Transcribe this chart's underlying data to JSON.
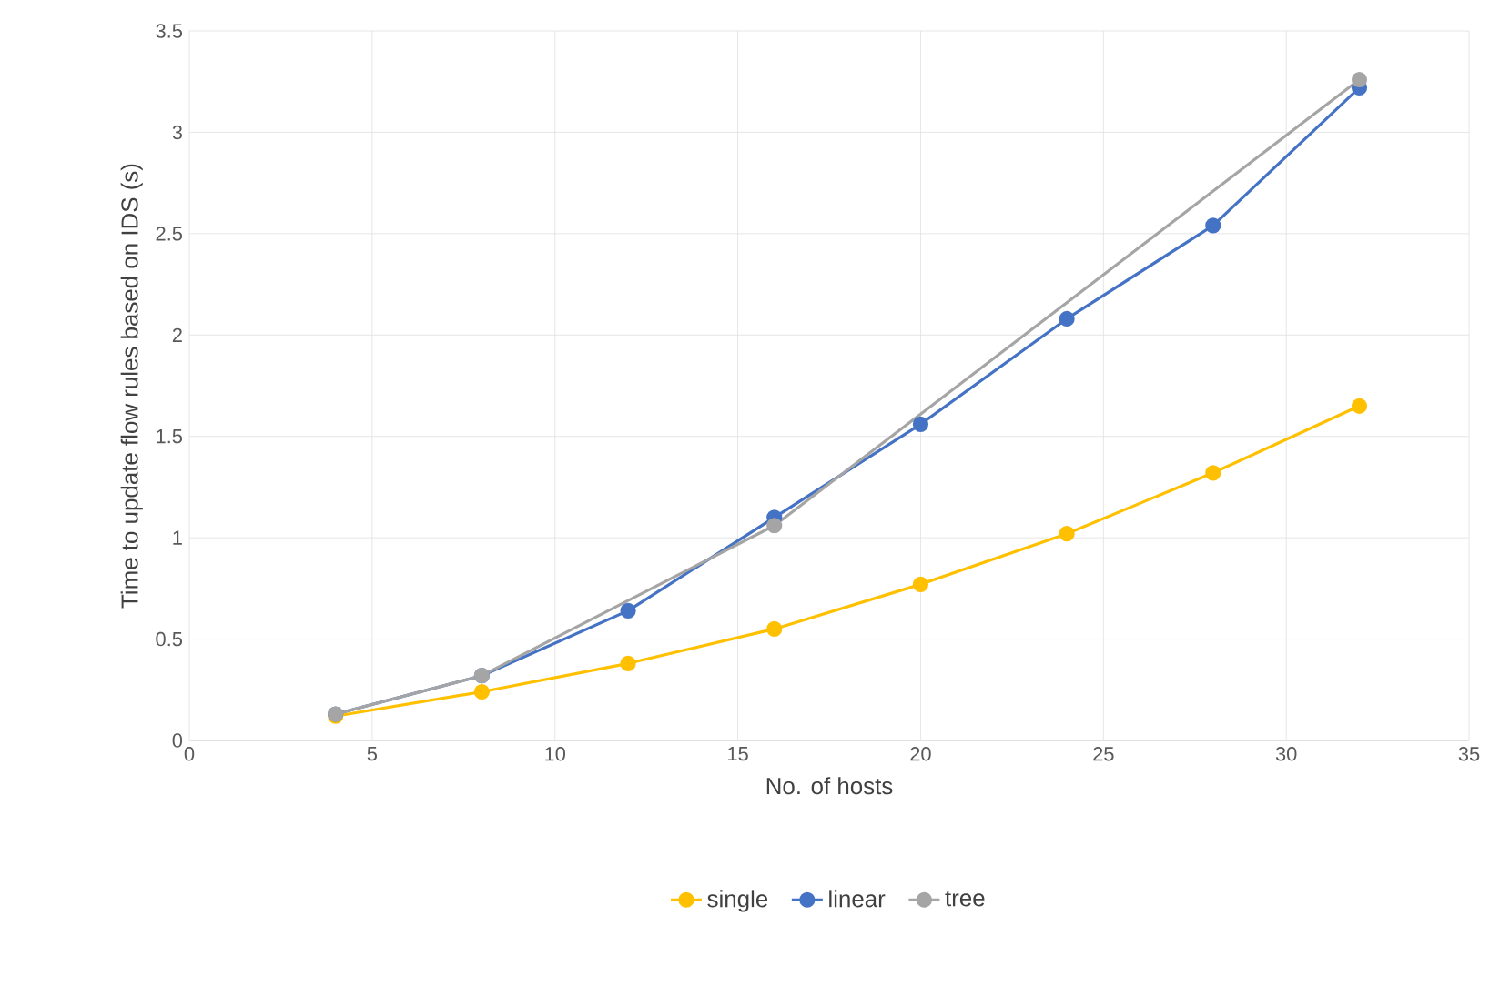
{
  "chart_data": {
    "type": "line",
    "xlabel": "No. of hosts",
    "ylabel": "Time to update flow rules based on IDS (s)",
    "xlim": [
      0,
      35
    ],
    "xticks": [
      0,
      5,
      10,
      15,
      20,
      25,
      30,
      35
    ],
    "ylim": [
      0,
      3.5
    ],
    "yticks": [
      0,
      0.5,
      1,
      1.5,
      2,
      2.5,
      3,
      3.5
    ],
    "grid": true,
    "legend": "bottom",
    "marker": "circle",
    "line_style": "solid",
    "series": [
      {
        "name": "single",
        "color": "#ffc000",
        "x": [
          4,
          8,
          12,
          16,
          20,
          24,
          28,
          32
        ],
        "values": [
          0.12,
          0.24,
          0.38,
          0.55,
          0.77,
          1.02,
          1.32,
          1.65
        ]
      },
      {
        "name": "linear",
        "color": "#4472c4",
        "x": [
          4,
          8,
          12,
          16,
          20,
          24,
          28,
          32
        ],
        "values": [
          0.13,
          0.32,
          0.64,
          1.1,
          1.56,
          2.08,
          2.54,
          3.22
        ]
      },
      {
        "name": "tree",
        "color": "#a5a5a5",
        "x": [
          4,
          8,
          16,
          32
        ],
        "values": [
          0.13,
          0.32,
          1.06,
          3.26
        ]
      }
    ]
  }
}
